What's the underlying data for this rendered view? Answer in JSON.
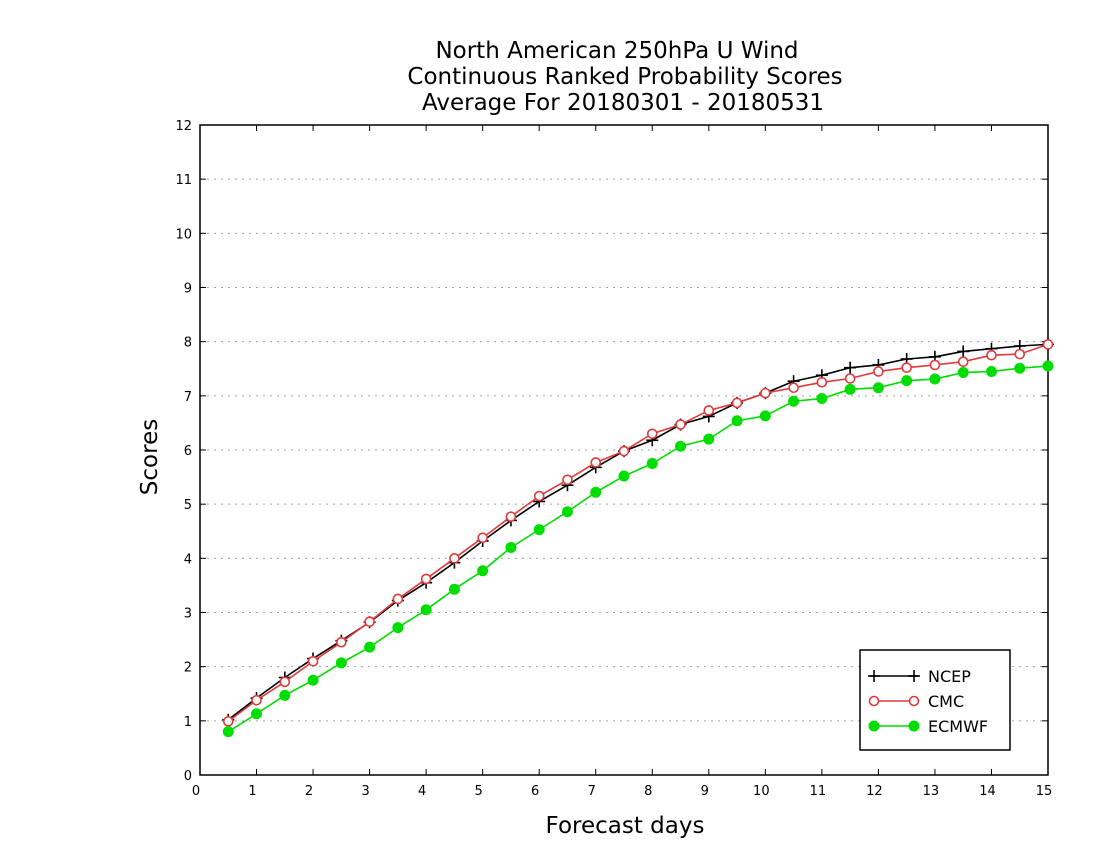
{
  "chart_data": {
    "type": "line",
    "title": [
      "North American 250hPa U Wind",
      "Continuous Ranked Probability Scores",
      "Average For 20180301 - 20180531"
    ],
    "xlabel": "Forecast days",
    "ylabel": "Scores",
    "xlim": [
      0,
      15
    ],
    "ylim": [
      0,
      12
    ],
    "x_ticks": [
      "0",
      "1",
      "2",
      "3",
      "4",
      "5",
      "6",
      "7",
      "8",
      "9",
      "10",
      "11",
      "12",
      "13",
      "14",
      "15"
    ],
    "y_ticks": [
      "0",
      "1",
      "2",
      "3",
      "4",
      "5",
      "6",
      "7",
      "8",
      "9",
      "10",
      "11",
      "12"
    ],
    "grid": "horizontal-dotted",
    "legend_position": "bottom-right",
    "x": [
      0.5,
      1,
      1.5,
      2,
      2.5,
      3,
      3.5,
      4,
      4.5,
      5,
      5.5,
      6,
      6.5,
      7,
      7.5,
      8,
      8.5,
      9,
      9.5,
      10,
      10.5,
      11,
      11.5,
      12,
      12.5,
      13,
      13.5,
      14,
      14.5,
      15
    ],
    "series": [
      {
        "name": "NCEP",
        "color": "#000000",
        "marker": "plus",
        "values": [
          1.02,
          1.42,
          1.8,
          2.15,
          2.48,
          2.82,
          3.22,
          3.55,
          3.92,
          4.32,
          4.7,
          5.05,
          5.35,
          5.68,
          5.98,
          6.18,
          6.47,
          6.62,
          6.87,
          7.05,
          7.27,
          7.38,
          7.52,
          7.57,
          7.68,
          7.72,
          7.82,
          7.87,
          7.92,
          7.95
        ]
      },
      {
        "name": "CMC",
        "color": "#e03a3a",
        "marker": "open-circle",
        "values": [
          0.99,
          1.38,
          1.72,
          2.1,
          2.45,
          2.83,
          3.25,
          3.62,
          4.0,
          4.38,
          4.77,
          5.15,
          5.45,
          5.77,
          5.98,
          6.3,
          6.47,
          6.73,
          6.87,
          7.05,
          7.15,
          7.25,
          7.32,
          7.45,
          7.52,
          7.57,
          7.63,
          7.75,
          7.77,
          7.95
        ]
      },
      {
        "name": "ECMWF",
        "color": "#00dd00",
        "marker": "filled-circle",
        "values": [
          0.8,
          1.13,
          1.47,
          1.75,
          2.07,
          2.36,
          2.72,
          3.05,
          3.43,
          3.77,
          4.2,
          4.53,
          4.86,
          5.22,
          5.52,
          5.75,
          6.07,
          6.2,
          6.54,
          6.63,
          6.9,
          6.95,
          7.12,
          7.15,
          7.28,
          7.31,
          7.43,
          7.45,
          7.51,
          7.55
        ]
      }
    ]
  }
}
